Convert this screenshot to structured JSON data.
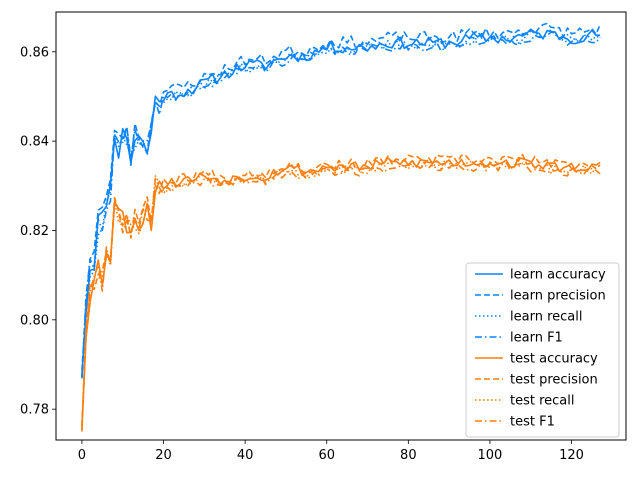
{
  "chart_data": {
    "type": "line",
    "title": "",
    "xlabel": "",
    "ylabel": "",
    "xlim": [
      -6.35,
      133.35
    ],
    "ylim": [
      0.7731,
      0.8689
    ],
    "grid": false,
    "legend_position": "lower-right",
    "x_ticks": [
      0,
      20,
      40,
      60,
      80,
      100,
      120
    ],
    "y_ticks": [
      0.78,
      0.8,
      0.82,
      0.84,
      0.86
    ],
    "colors": {
      "learn": "#1f77b4",
      "learn_display": "#0a84ff",
      "test": "#ff7f0e"
    },
    "anchors": {
      "learn": {
        "x": [
          0,
          1,
          2,
          3,
          4,
          5,
          6,
          7,
          8,
          9,
          10,
          11,
          12,
          13,
          14,
          15,
          16,
          17,
          18,
          20,
          25,
          30,
          35,
          40,
          45,
          50,
          55,
          60,
          65,
          70,
          75,
          80,
          85,
          90,
          95,
          100,
          105,
          110,
          115,
          120,
          127
        ],
        "y": [
          0.789,
          0.803,
          0.812,
          0.814,
          0.822,
          0.822,
          0.828,
          0.829,
          0.843,
          0.838,
          0.841,
          0.842,
          0.836,
          0.841,
          0.841,
          0.839,
          0.838,
          0.842,
          0.849,
          0.85,
          0.851,
          0.853,
          0.855,
          0.857,
          0.857,
          0.859,
          0.859,
          0.861,
          0.861,
          0.861,
          0.862,
          0.862,
          0.862,
          0.862,
          0.863,
          0.863,
          0.863,
          0.864,
          0.864,
          0.863,
          0.864
        ]
      },
      "test": {
        "x": [
          0,
          1,
          2,
          3,
          4,
          5,
          6,
          7,
          8,
          9,
          10,
          11,
          12,
          13,
          14,
          15,
          16,
          17,
          18,
          20,
          25,
          30,
          35,
          40,
          45,
          50,
          55,
          60,
          65,
          70,
          75,
          80,
          85,
          90,
          95,
          100,
          105,
          110,
          115,
          120,
          127
        ],
        "y": [
          0.777,
          0.798,
          0.806,
          0.808,
          0.812,
          0.809,
          0.816,
          0.815,
          0.826,
          0.824,
          0.822,
          0.822,
          0.82,
          0.823,
          0.822,
          0.823,
          0.824,
          0.822,
          0.83,
          0.83,
          0.831,
          0.832,
          0.831,
          0.832,
          0.832,
          0.834,
          0.833,
          0.834,
          0.834,
          0.834,
          0.835,
          0.835,
          0.835,
          0.835,
          0.835,
          0.835,
          0.835,
          0.835,
          0.834,
          0.834,
          0.834
        ]
      }
    },
    "series": [
      {
        "name": "learn accuracy",
        "group": "learn",
        "style": "solid",
        "offset": 0.0,
        "noise": 0.0013,
        "seed": 11
      },
      {
        "name": "learn precision",
        "group": "learn",
        "style": "dashed",
        "offset": 0.0012,
        "noise": 0.0013,
        "seed": 23
      },
      {
        "name": "learn recall",
        "group": "learn",
        "style": "dotted",
        "offset": -0.0004,
        "noise": 0.0012,
        "seed": 37
      },
      {
        "name": "learn F1",
        "group": "learn",
        "style": "dashdot",
        "offset": -0.0007,
        "noise": 0.0012,
        "seed": 41
      },
      {
        "name": "test accuracy",
        "group": "test",
        "style": "solid",
        "offset": 0.0002,
        "noise": 0.0012,
        "seed": 53
      },
      {
        "name": "test precision",
        "group": "test",
        "style": "dashed",
        "offset": 0.0008,
        "noise": 0.0012,
        "seed": 67
      },
      {
        "name": "test recall",
        "group": "test",
        "style": "dotted",
        "offset": -0.0003,
        "noise": 0.0011,
        "seed": 79
      },
      {
        "name": "test F1",
        "group": "test",
        "style": "dashdot",
        "offset": -0.0008,
        "noise": 0.0011,
        "seed": 89
      }
    ]
  }
}
